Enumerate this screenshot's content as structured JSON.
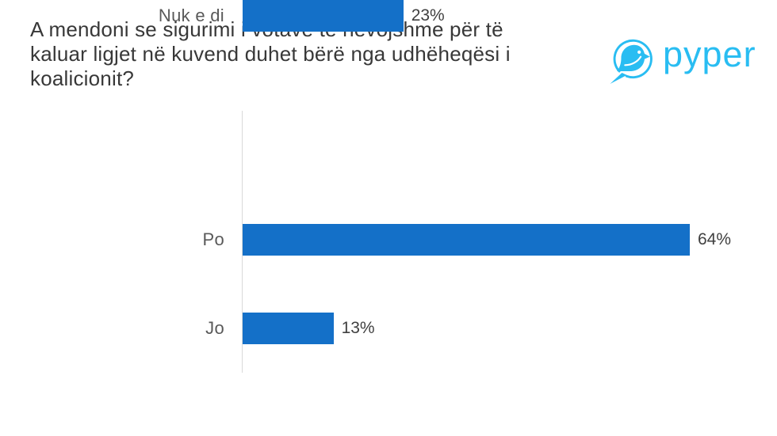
{
  "page": {
    "background": "#ffffff"
  },
  "header": {
    "title_full": "A mendoni se sigurimi i votave të nevojshme për të kaluar ligjet në kuvend duhet bërë nga udhëheqësi i koalicionit?",
    "title_lines": [
      "A mendoni se sigurimi i votave të nevojshme për të",
      "kaluar ligjet në kuvend duhet bërë nga udhëheqësi i",
      "koalicionit?"
    ],
    "title_color": "#383838"
  },
  "logo": {
    "brand": "pyper",
    "icon": "bird-in-circle-icon",
    "color": "#29BDF2"
  },
  "chart_data": {
    "type": "bar",
    "orientation": "horizontal",
    "title": "A mendoni se sigurimi i votave të nevojshme për të kaluar ligjet në kuvend duhet bërë nga udhëheqësi i koalicionit?",
    "categories": [
      "Po",
      "Jo",
      "Nuk e di"
    ],
    "values": [
      64,
      13,
      23
    ],
    "value_labels": [
      "64%",
      "13%",
      "23%"
    ],
    "unit": "%",
    "xlim": [
      0,
      70
    ],
    "grid": false,
    "legend": false,
    "bar_color": "#1470C8",
    "axis_line_color": "#D9D9D9",
    "category_label_color": "#595959",
    "value_label_color": "#404040"
  }
}
